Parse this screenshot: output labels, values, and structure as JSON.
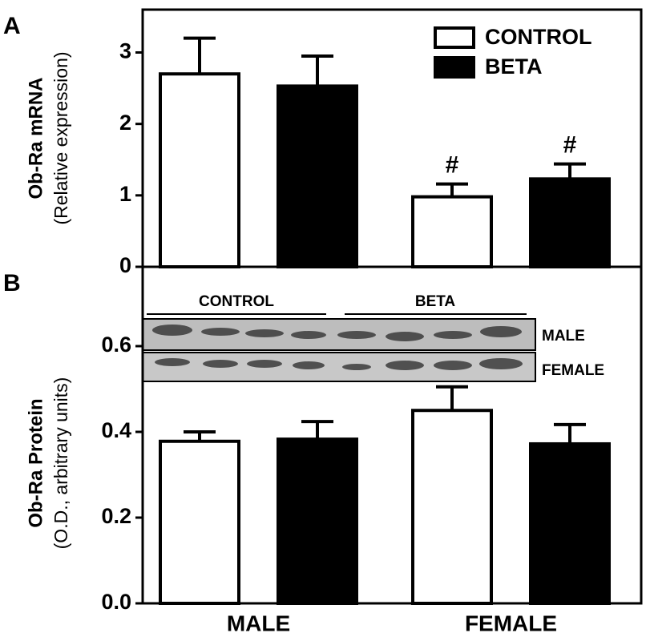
{
  "chart_data": [
    {
      "type": "bar",
      "panel_label": "A",
      "y_label": [
        "Ob-Ra mRNA",
        "(Relative expression)"
      ],
      "ylim": [
        0,
        3.6
      ],
      "yticks": [
        0,
        1,
        2,
        3
      ],
      "legend": "upper right",
      "series": [
        {
          "name": "CONTROL",
          "color": "#ffffff",
          "values": [
            2.7,
            0.98
          ],
          "errors": [
            0.5,
            0.18
          ],
          "marker_labels": [
            null,
            "#"
          ]
        },
        {
          "name": "BETA",
          "color": "#000000",
          "values": [
            2.53,
            1.23
          ],
          "errors": [
            0.42,
            0.21
          ],
          "marker_labels": [
            null,
            "#"
          ]
        }
      ]
    },
    {
      "type": "bar",
      "panel_label": "B",
      "y_label": [
        "Ob-Ra Protein",
        "(O.D., arbitrary units)"
      ],
      "ylim": [
        0,
        0.785
      ],
      "yticks": [
        {
          "value": 0,
          "label": "0.0"
        },
        0.2,
        0.4,
        0.6
      ],
      "categories": [
        "MALE",
        "FEMALE"
      ],
      "blot_rows": [
        "MALE",
        "FEMALE"
      ],
      "series": [
        {
          "name": "CONTROL",
          "color": "#ffffff",
          "values": [
            0.378,
            0.45
          ],
          "errors": [
            0.022,
            0.055
          ]
        },
        {
          "name": "BETA",
          "color": "#000000",
          "values": [
            0.383,
            0.372
          ],
          "errors": [
            0.041,
            0.045
          ]
        }
      ]
    }
  ]
}
